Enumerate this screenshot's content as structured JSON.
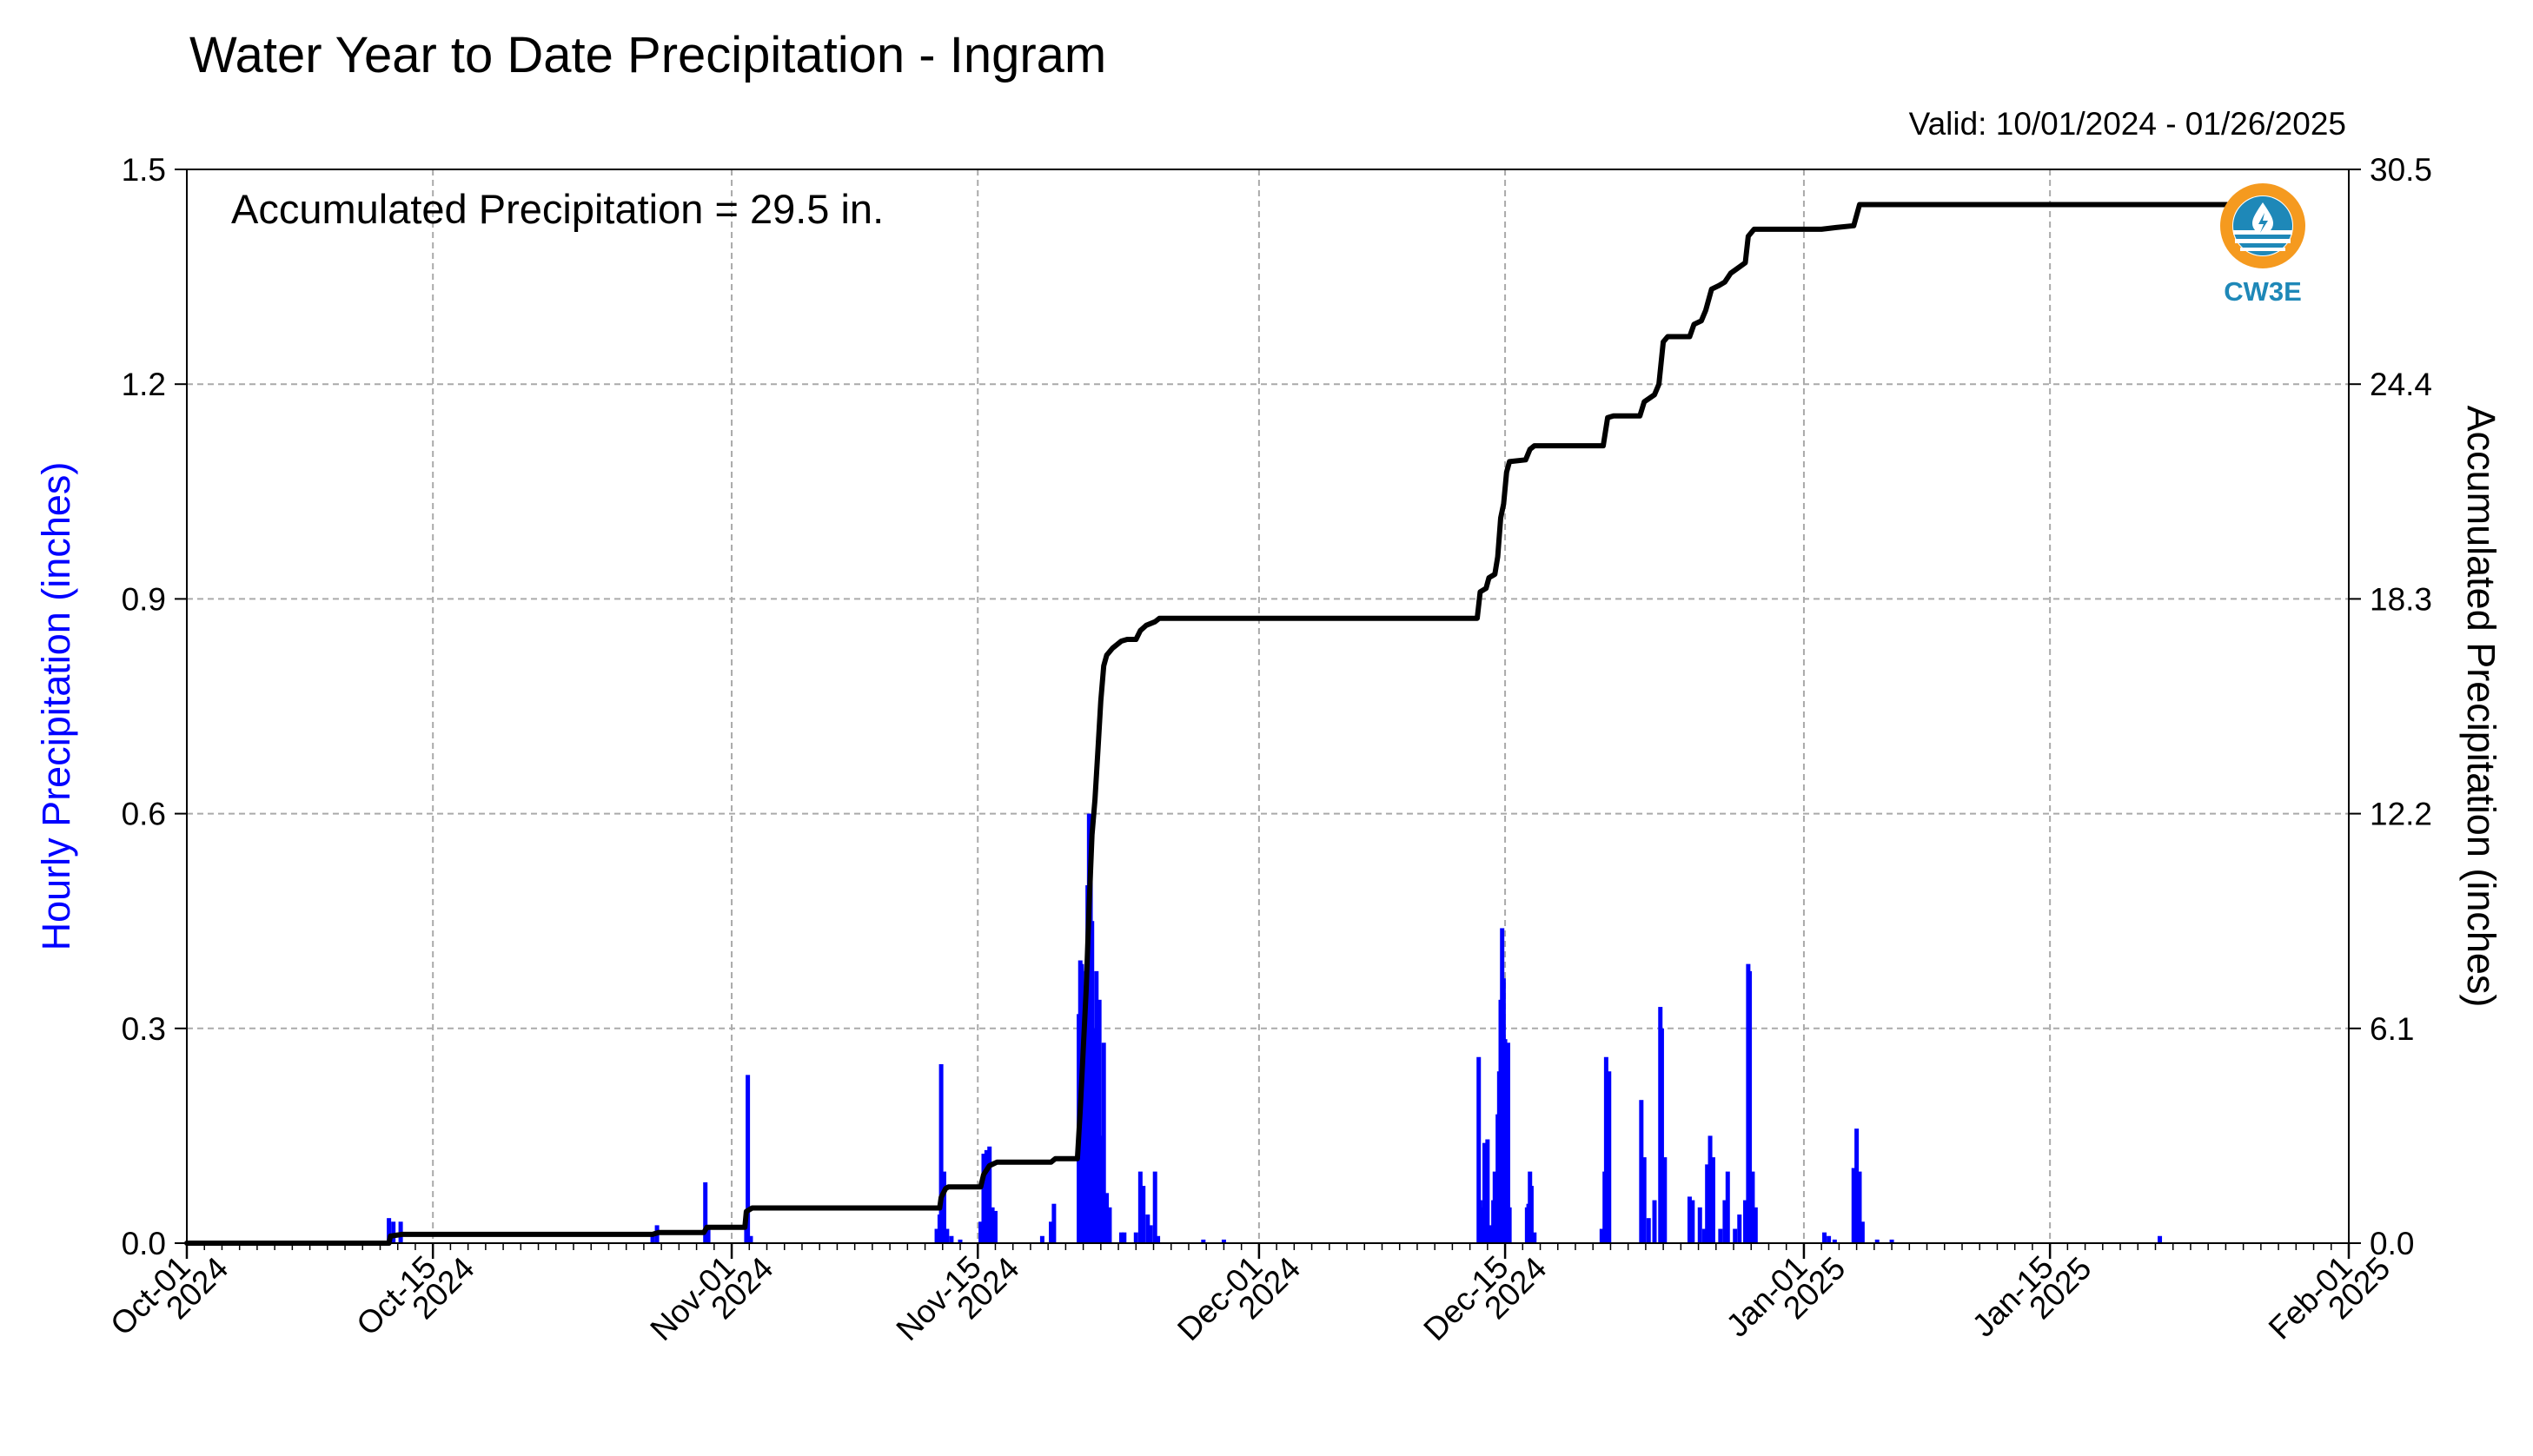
{
  "header": {
    "title": "Water Year to Date Precipitation - Ingram",
    "valid": "Valid: 10/01/2024 - 01/26/2025",
    "accum_note": "Accumulated Precipitation = 29.5 in.",
    "logo_text": "CW3E"
  },
  "colors": {
    "hourly_bars": "#0000ff",
    "accumulated_line": "#000000",
    "left_axis_label": "#0000ff",
    "grid": "#aaaaaa",
    "logo_orange": "#f59a1f",
    "logo_blue": "#1e88b8"
  },
  "chart_data": {
    "type": "bar+line",
    "title": "Water Year to Date Precipitation - Ingram",
    "x_range": [
      "2024-10-01",
      "2025-02-01"
    ],
    "x_ticks": [
      {
        "date": "2024-10-01",
        "label1": "Oct-01",
        "label2": "2024"
      },
      {
        "date": "2024-10-15",
        "label1": "Oct-15",
        "label2": "2024"
      },
      {
        "date": "2024-11-01",
        "label1": "Nov-01",
        "label2": "2024"
      },
      {
        "date": "2024-11-15",
        "label1": "Nov-15",
        "label2": "2024"
      },
      {
        "date": "2024-12-01",
        "label1": "Dec-01",
        "label2": "2024"
      },
      {
        "date": "2024-12-15",
        "label1": "Dec-15",
        "label2": "2024"
      },
      {
        "date": "2025-01-01",
        "label1": "Jan-01",
        "label2": "2025"
      },
      {
        "date": "2025-01-15",
        "label1": "Jan-15",
        "label2": "2025"
      },
      {
        "date": "2025-02-01",
        "label1": "Feb-01",
        "label2": "2025"
      }
    ],
    "left_axis": {
      "label": "Hourly Precipitation (inches)",
      "ylim": [
        0,
        1.5
      ],
      "ticks": [
        "0.0",
        "0.3",
        "0.6",
        "0.9",
        "1.2",
        "1.5"
      ]
    },
    "right_axis": {
      "label": "Accumulated Precipitation (inches)",
      "ylim": [
        0,
        30.5
      ],
      "ticks": [
        "0.0",
        "6.1",
        "12.2",
        "18.3",
        "24.4",
        "30.5"
      ]
    },
    "grid": true,
    "series": [
      {
        "name": "Hourly Precipitation",
        "axis": "left",
        "kind": "bar",
        "points": [
          [
            "2024-10-12T12",
            0.035
          ],
          [
            "2024-10-12T18",
            0.03
          ],
          [
            "2024-10-13T04",
            0.03
          ],
          [
            "2024-10-27T12",
            0.01
          ],
          [
            "2024-10-27T18",
            0.025
          ],
          [
            "2024-10-30T12",
            0.085
          ],
          [
            "2024-10-30T16",
            0.02
          ],
          [
            "2024-11-01T20",
            0.04
          ],
          [
            "2024-11-01T22",
            0.235
          ],
          [
            "2024-11-02T02",
            0.01
          ],
          [
            "2024-11-12T16",
            0.02
          ],
          [
            "2024-11-12T20",
            0.04
          ],
          [
            "2024-11-12T22",
            0.25
          ],
          [
            "2024-11-13T02",
            0.1
          ],
          [
            "2024-11-13T06",
            0.02
          ],
          [
            "2024-11-13T12",
            0.01
          ],
          [
            "2024-11-14T00",
            0.005
          ],
          [
            "2024-11-15T04",
            0.03
          ],
          [
            "2024-11-15T08",
            0.125
          ],
          [
            "2024-11-15T12",
            0.13
          ],
          [
            "2024-11-15T16",
            0.135
          ],
          [
            "2024-11-15T20",
            0.05
          ],
          [
            "2024-11-16T00",
            0.045
          ],
          [
            "2024-11-18T16",
            0.01
          ],
          [
            "2024-11-19T04",
            0.03
          ],
          [
            "2024-11-19T08",
            0.055
          ],
          [
            "2024-11-20T18",
            0.32
          ],
          [
            "2024-11-20T20",
            0.395
          ],
          [
            "2024-11-20T22",
            0.39
          ],
          [
            "2024-11-21T00",
            0.2
          ],
          [
            "2024-11-21T02",
            0.36
          ],
          [
            "2024-11-21T04",
            0.38
          ],
          [
            "2024-11-21T06",
            0.5
          ],
          [
            "2024-11-21T08",
            0.6
          ],
          [
            "2024-11-21T10",
            0.55
          ],
          [
            "2024-11-21T12",
            0.45
          ],
          [
            "2024-11-21T14",
            0.2
          ],
          [
            "2024-11-21T16",
            0.3
          ],
          [
            "2024-11-21T18",
            0.38
          ],
          [
            "2024-11-21T20",
            0.29
          ],
          [
            "2024-11-21T22",
            0.34
          ],
          [
            "2024-11-22T00",
            0.15
          ],
          [
            "2024-11-22T02",
            0.06
          ],
          [
            "2024-11-22T04",
            0.28
          ],
          [
            "2024-11-22T06",
            0.065
          ],
          [
            "2024-11-22T08",
            0.07
          ],
          [
            "2024-11-22T12",
            0.05
          ],
          [
            "2024-11-23T04",
            0.015
          ],
          [
            "2024-11-23T08",
            0.015
          ],
          [
            "2024-11-24T00",
            0.015
          ],
          [
            "2024-11-24T06",
            0.1
          ],
          [
            "2024-11-24T10",
            0.08
          ],
          [
            "2024-11-24T16",
            0.04
          ],
          [
            "2024-11-24T20",
            0.025
          ],
          [
            "2024-11-25T02",
            0.1
          ],
          [
            "2024-11-25T06",
            0.01
          ],
          [
            "2024-11-27T20",
            0.005
          ],
          [
            "2024-11-29T00",
            0.005
          ],
          [
            "2024-12-13T12",
            0.26
          ],
          [
            "2024-12-13T14",
            0.06
          ],
          [
            "2024-12-13T18",
            0.05
          ],
          [
            "2024-12-13T20",
            0.14
          ],
          [
            "2024-12-14T00",
            0.145
          ],
          [
            "2024-12-14T04",
            0.025
          ],
          [
            "2024-12-14T08",
            0.06
          ],
          [
            "2024-12-14T10",
            0.1
          ],
          [
            "2024-12-14T14",
            0.18
          ],
          [
            "2024-12-14T16",
            0.24
          ],
          [
            "2024-12-14T18",
            0.34
          ],
          [
            "2024-12-14T20",
            0.44
          ],
          [
            "2024-12-14T22",
            0.37
          ],
          [
            "2024-12-15T00",
            0.285
          ],
          [
            "2024-12-15T02",
            0.25
          ],
          [
            "2024-12-15T04",
            0.28
          ],
          [
            "2024-12-15T06",
            0.05
          ],
          [
            "2024-12-16T06",
            0.05
          ],
          [
            "2024-12-16T08",
            0.055
          ],
          [
            "2024-12-16T10",
            0.1
          ],
          [
            "2024-12-16T12",
            0.08
          ],
          [
            "2024-12-16T16",
            0.015
          ],
          [
            "2024-12-20T12",
            0.02
          ],
          [
            "2024-12-20T16",
            0.1
          ],
          [
            "2024-12-20T18",
            0.26
          ],
          [
            "2024-12-20T22",
            0.24
          ],
          [
            "2024-12-22T18",
            0.2
          ],
          [
            "2024-12-22T22",
            0.12
          ],
          [
            "2024-12-23T04",
            0.035
          ],
          [
            "2024-12-23T12",
            0.06
          ],
          [
            "2024-12-23T20",
            0.33
          ],
          [
            "2024-12-23T22",
            0.3
          ],
          [
            "2024-12-24T02",
            0.12
          ],
          [
            "2024-12-25T12",
            0.065
          ],
          [
            "2024-12-25T16",
            0.06
          ],
          [
            "2024-12-26T02",
            0.05
          ],
          [
            "2024-12-26T08",
            0.02
          ],
          [
            "2024-12-26T12",
            0.11
          ],
          [
            "2024-12-26T16",
            0.15
          ],
          [
            "2024-12-26T20",
            0.12
          ],
          [
            "2024-12-27T06",
            0.02
          ],
          [
            "2024-12-27T12",
            0.06
          ],
          [
            "2024-12-27T16",
            0.1
          ],
          [
            "2024-12-28T02",
            0.02
          ],
          [
            "2024-12-28T08",
            0.04
          ],
          [
            "2024-12-28T16",
            0.06
          ],
          [
            "2024-12-28T20",
            0.39
          ],
          [
            "2024-12-28T22",
            0.38
          ],
          [
            "2024-12-29T02",
            0.1
          ],
          [
            "2024-12-29T06",
            0.05
          ],
          [
            "2025-01-02T04",
            0.015
          ],
          [
            "2025-01-02T10",
            0.01
          ],
          [
            "2025-01-02T18",
            0.005
          ],
          [
            "2025-01-03T20",
            0.105
          ],
          [
            "2025-01-04T00",
            0.16
          ],
          [
            "2025-01-04T04",
            0.1
          ],
          [
            "2025-01-04T08",
            0.03
          ],
          [
            "2025-01-05T04",
            0.005
          ],
          [
            "2025-01-06T00",
            0.005
          ],
          [
            "2025-01-21T06",
            0.01
          ]
        ]
      },
      {
        "name": "Accumulated Precipitation",
        "axis": "right",
        "kind": "line",
        "points": [
          [
            "2024-10-01T00",
            0.0
          ],
          [
            "2024-10-12T12",
            0.0
          ],
          [
            "2024-10-12T14",
            0.2
          ],
          [
            "2024-10-13T06",
            0.25
          ],
          [
            "2024-10-27T12",
            0.25
          ],
          [
            "2024-10-27T20",
            0.3
          ],
          [
            "2024-10-30T10",
            0.3
          ],
          [
            "2024-10-30T14",
            0.45
          ],
          [
            "2024-11-01T18",
            0.45
          ],
          [
            "2024-11-01T20",
            0.9
          ],
          [
            "2024-11-02T00",
            0.95
          ],
          [
            "2024-11-02T04",
            1.0
          ],
          [
            "2024-11-12T20",
            1.0
          ],
          [
            "2024-11-12T22",
            1.3
          ],
          [
            "2024-11-13T04",
            1.55
          ],
          [
            "2024-11-13T08",
            1.6
          ],
          [
            "2024-11-15T04",
            1.6
          ],
          [
            "2024-11-15T08",
            1.95
          ],
          [
            "2024-11-15T16",
            2.2
          ],
          [
            "2024-11-16T02",
            2.3
          ],
          [
            "2024-11-19T04",
            2.3
          ],
          [
            "2024-11-19T10",
            2.4
          ],
          [
            "2024-11-20T16",
            2.4
          ],
          [
            "2024-11-20T20",
            3.8
          ],
          [
            "2024-11-21T00",
            5.5
          ],
          [
            "2024-11-21T04",
            7.2
          ],
          [
            "2024-11-21T08",
            9.6
          ],
          [
            "2024-11-21T12",
            11.6
          ],
          [
            "2024-11-21T16",
            12.6
          ],
          [
            "2024-11-21T20",
            14.0
          ],
          [
            "2024-11-22T00",
            15.4
          ],
          [
            "2024-11-22T04",
            16.4
          ],
          [
            "2024-11-22T08",
            16.7
          ],
          [
            "2024-11-22T16",
            16.9
          ],
          [
            "2024-11-23T04",
            17.1
          ],
          [
            "2024-11-23T12",
            17.15
          ],
          [
            "2024-11-24T00",
            17.15
          ],
          [
            "2024-11-24T06",
            17.4
          ],
          [
            "2024-11-24T14",
            17.55
          ],
          [
            "2024-11-25T02",
            17.65
          ],
          [
            "2024-11-25T08",
            17.75
          ],
          [
            "2024-12-13T10",
            17.75
          ],
          [
            "2024-12-13T14",
            18.5
          ],
          [
            "2024-12-13T22",
            18.6
          ],
          [
            "2024-12-14T02",
            18.9
          ],
          [
            "2024-12-14T10",
            19.0
          ],
          [
            "2024-12-14T14",
            19.5
          ],
          [
            "2024-12-14T18",
            20.6
          ],
          [
            "2024-12-14T22",
            21.0
          ],
          [
            "2024-12-15T02",
            21.9
          ],
          [
            "2024-12-15T06",
            22.2
          ],
          [
            "2024-12-16T04",
            22.25
          ],
          [
            "2024-12-16T10",
            22.55
          ],
          [
            "2024-12-16T16",
            22.65
          ],
          [
            "2024-12-20T14",
            22.65
          ],
          [
            "2024-12-20T20",
            23.45
          ],
          [
            "2024-12-21T04",
            23.5
          ],
          [
            "2024-12-22T16",
            23.5
          ],
          [
            "2024-12-22T22",
            23.9
          ],
          [
            "2024-12-23T12",
            24.1
          ],
          [
            "2024-12-23T18",
            24.4
          ],
          [
            "2024-12-24T00",
            25.6
          ],
          [
            "2024-12-24T06",
            25.75
          ],
          [
            "2024-12-25T12",
            25.75
          ],
          [
            "2024-12-25T18",
            26.1
          ],
          [
            "2024-12-26T04",
            26.2
          ],
          [
            "2024-12-26T10",
            26.5
          ],
          [
            "2024-12-26T18",
            27.1
          ],
          [
            "2024-12-27T04",
            27.2
          ],
          [
            "2024-12-27T12",
            27.3
          ],
          [
            "2024-12-27T20",
            27.55
          ],
          [
            "2024-12-28T06",
            27.7
          ],
          [
            "2024-12-28T16",
            27.85
          ],
          [
            "2024-12-28T20",
            28.6
          ],
          [
            "2024-12-29T04",
            28.8
          ],
          [
            "2024-12-29T12",
            28.8
          ],
          [
            "2025-01-02T00",
            28.8
          ],
          [
            "2025-01-02T20",
            28.85
          ],
          [
            "2025-01-03T20",
            28.9
          ],
          [
            "2025-01-04T04",
            29.5
          ],
          [
            "2025-01-26T00",
            29.5
          ]
        ]
      }
    ]
  }
}
